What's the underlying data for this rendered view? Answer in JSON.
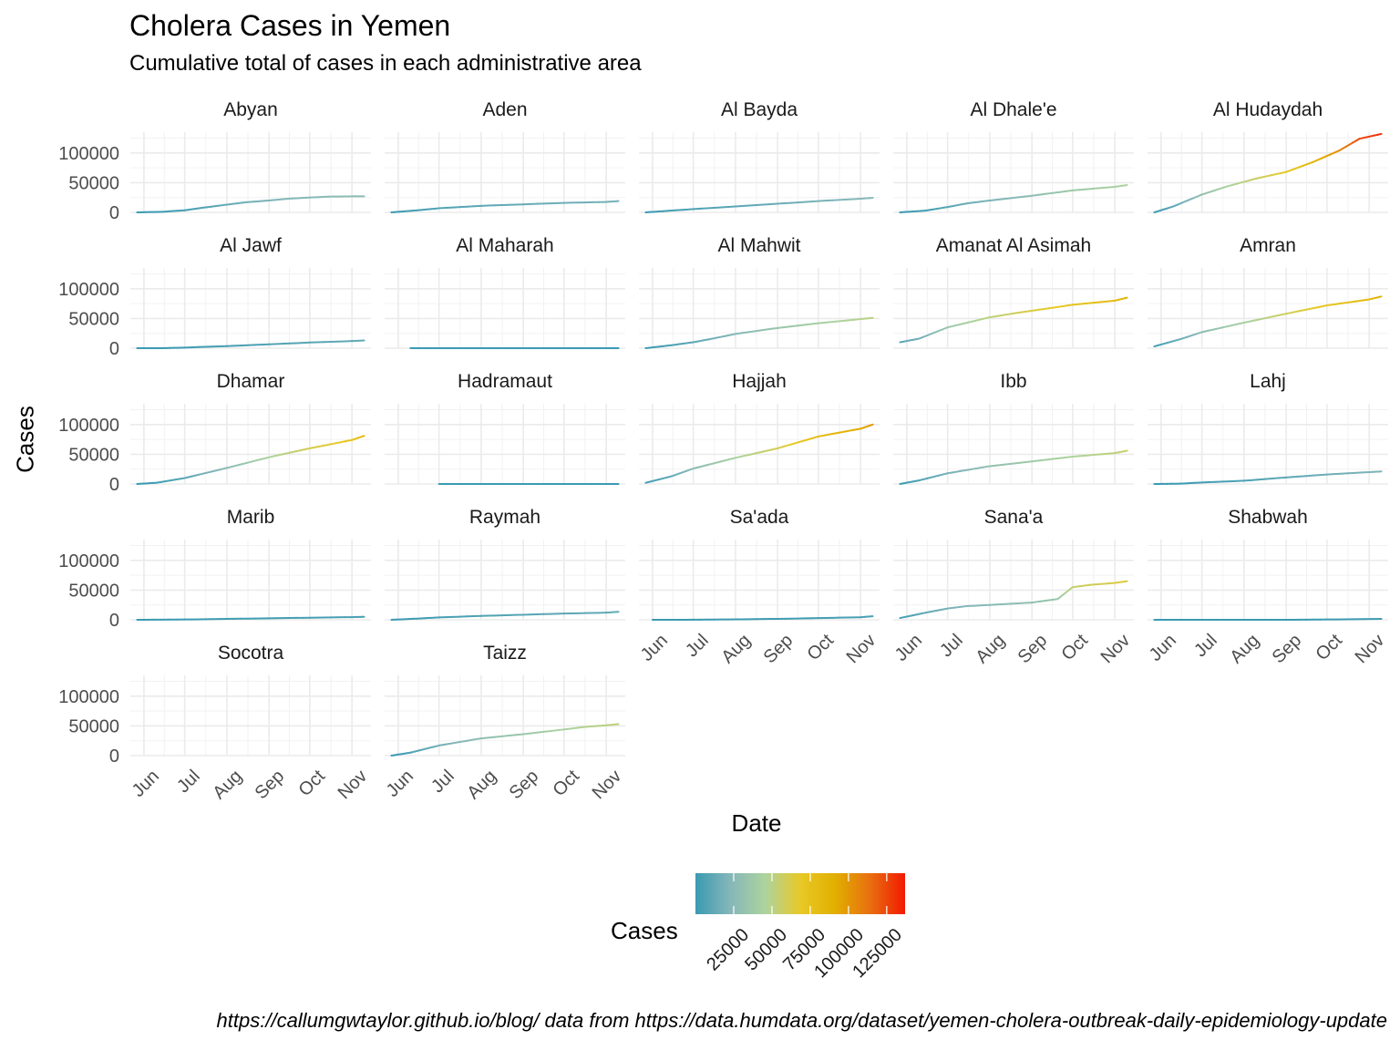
{
  "chart_data": {
    "type": "line",
    "title": "Cholera Cases in Yemen",
    "subtitle": "Cumulative total of cases in each administrative area",
    "xlabel": "Date",
    "ylabel": "Cases",
    "caption": "https://callumgwtaylor.github.io/blog/ data from https://data.humdata.org/dataset/yemen-cholera-outbreak-daily-epidemiology-update",
    "x_tick_labels": [
      "Jun",
      "Jul",
      "Aug",
      "Sep",
      "Oct",
      "Nov"
    ],
    "x_ticks": [
      "2017-06-01",
      "2017-07-01",
      "2017-08-01",
      "2017-09-01",
      "2017-10-01",
      "2017-11-01"
    ],
    "xlim": [
      "2017-05-22",
      "2017-11-15"
    ],
    "y_tick_labels": [
      "0",
      "50000",
      "100000"
    ],
    "y_ticks": [
      0,
      50000,
      100000
    ],
    "ylim": [
      0,
      135000
    ],
    "grid": true,
    "facet_layout": "5 columns, 5 rows",
    "color_scale": {
      "title": "Cases",
      "colors": [
        "#3a9ab2",
        "#85b7b9",
        "#add39e",
        "#e8c927",
        "#e1af00",
        "#e86f10",
        "#f21a00"
      ],
      "tick_labels": [
        "25000",
        "50000",
        "75000",
        "100000",
        "125000"
      ],
      "ticks": [
        25000,
        50000,
        75000,
        100000,
        125000
      ],
      "range": [
        0,
        137000
      ]
    },
    "panels": [
      {
        "name": "Abyan",
        "x": [
          "2017-05-27",
          "2017-06-15",
          "2017-07-01",
          "2017-07-15",
          "2017-08-01",
          "2017-08-15",
          "2017-09-01",
          "2017-09-15",
          "2017-10-01",
          "2017-10-15",
          "2017-11-01",
          "2017-11-10"
        ],
        "y": [
          0,
          1000,
          3500,
          8000,
          13000,
          17000,
          20000,
          23000,
          25000,
          26500,
          27000,
          27000
        ]
      },
      {
        "name": "Aden",
        "x": [
          "2017-05-27",
          "2017-06-15",
          "2017-07-01",
          "2017-08-01",
          "2017-09-01",
          "2017-10-01",
          "2017-11-01",
          "2017-11-10"
        ],
        "y": [
          0,
          3500,
          7000,
          11000,
          13500,
          16000,
          17500,
          19000
        ]
      },
      {
        "name": "Al Bayda",
        "x": [
          "2017-05-27",
          "2017-06-15",
          "2017-07-01",
          "2017-08-01",
          "2017-09-01",
          "2017-10-01",
          "2017-11-01",
          "2017-11-10"
        ],
        "y": [
          0,
          3000,
          5500,
          10000,
          14500,
          19000,
          23000,
          24500
        ]
      },
      {
        "name": "Al Dhale'e",
        "x": [
          "2017-05-27",
          "2017-06-15",
          "2017-07-01",
          "2017-07-15",
          "2017-08-01",
          "2017-09-01",
          "2017-10-01",
          "2017-11-01",
          "2017-11-10"
        ],
        "y": [
          0,
          3000,
          9000,
          15000,
          20000,
          28000,
          37000,
          43000,
          46000
        ]
      },
      {
        "name": "Al Hudaydah",
        "x": [
          "2017-05-27",
          "2017-06-10",
          "2017-07-01",
          "2017-07-20",
          "2017-08-10",
          "2017-09-01",
          "2017-09-20",
          "2017-10-10",
          "2017-10-25",
          "2017-11-10"
        ],
        "y": [
          0,
          10000,
          30000,
          44000,
          57000,
          68000,
          84000,
          104000,
          124000,
          132000
        ]
      },
      {
        "name": "Al Jawf",
        "x": [
          "2017-05-27",
          "2017-06-15",
          "2017-07-01",
          "2017-08-01",
          "2017-09-01",
          "2017-10-01",
          "2017-11-01",
          "2017-11-10"
        ],
        "y": [
          0,
          0,
          1000,
          3500,
          6500,
          9500,
          12000,
          13000
        ]
      },
      {
        "name": "Al Maharah",
        "x": [
          "2017-06-10",
          "2017-11-10"
        ],
        "y": [
          0,
          0
        ]
      },
      {
        "name": "Al Mahwit",
        "x": [
          "2017-05-27",
          "2017-06-15",
          "2017-07-01",
          "2017-07-15",
          "2017-08-01",
          "2017-09-01",
          "2017-10-01",
          "2017-11-01",
          "2017-11-10"
        ],
        "y": [
          0,
          5000,
          10000,
          16000,
          24000,
          34000,
          42000,
          49000,
          51000
        ]
      },
      {
        "name": "Amanat Al Asimah",
        "x": [
          "2017-05-27",
          "2017-06-10",
          "2017-07-01",
          "2017-08-01",
          "2017-08-20",
          "2017-09-10",
          "2017-10-01",
          "2017-11-01",
          "2017-11-10"
        ],
        "y": [
          10000,
          16000,
          35000,
          52000,
          59000,
          66000,
          73000,
          80000,
          85000
        ]
      },
      {
        "name": "Amran",
        "x": [
          "2017-05-27",
          "2017-06-15",
          "2017-07-01",
          "2017-08-01",
          "2017-09-01",
          "2017-10-01",
          "2017-11-01",
          "2017-11-10"
        ],
        "y": [
          3000,
          15000,
          27000,
          43000,
          58000,
          72000,
          82000,
          87000
        ]
      },
      {
        "name": "Dhamar",
        "x": [
          "2017-05-27",
          "2017-06-10",
          "2017-07-01",
          "2017-08-01",
          "2017-09-01",
          "2017-10-01",
          "2017-11-01",
          "2017-11-10"
        ],
        "y": [
          0,
          2000,
          10000,
          27000,
          45000,
          60000,
          74000,
          81000
        ]
      },
      {
        "name": "Hadramaut",
        "x": [
          "2017-07-01",
          "2017-11-10"
        ],
        "y": [
          0,
          0
        ]
      },
      {
        "name": "Hajjah",
        "x": [
          "2017-05-27",
          "2017-06-15",
          "2017-07-01",
          "2017-08-01",
          "2017-09-01",
          "2017-10-01",
          "2017-11-01",
          "2017-11-10"
        ],
        "y": [
          2000,
          13000,
          26000,
          44000,
          60000,
          80000,
          93000,
          100000
        ]
      },
      {
        "name": "Ibb",
        "x": [
          "2017-05-27",
          "2017-06-10",
          "2017-07-01",
          "2017-08-01",
          "2017-09-01",
          "2017-10-01",
          "2017-11-01",
          "2017-11-10"
        ],
        "y": [
          0,
          6000,
          18000,
          30000,
          38000,
          46000,
          52000,
          56000
        ]
      },
      {
        "name": "Lahj",
        "x": [
          "2017-05-27",
          "2017-06-15",
          "2017-07-01",
          "2017-08-01",
          "2017-09-01",
          "2017-10-01",
          "2017-11-01",
          "2017-11-10"
        ],
        "y": [
          0,
          500,
          2500,
          5500,
          11000,
          16000,
          20000,
          21000
        ]
      },
      {
        "name": "Marib",
        "x": [
          "2017-05-27",
          "2017-07-01",
          "2017-08-01",
          "2017-09-01",
          "2017-10-01",
          "2017-11-01",
          "2017-11-10"
        ],
        "y": [
          0,
          500,
          1500,
          2500,
          3500,
          4500,
          5000
        ]
      },
      {
        "name": "Raymah",
        "x": [
          "2017-05-27",
          "2017-06-15",
          "2017-07-01",
          "2017-08-01",
          "2017-09-01",
          "2017-10-01",
          "2017-11-01",
          "2017-11-10"
        ],
        "y": [
          0,
          2000,
          4000,
          6500,
          8500,
          10500,
          12000,
          13500
        ]
      },
      {
        "name": "Sa'ada",
        "x": [
          "2017-06-01",
          "2017-07-01",
          "2017-08-01",
          "2017-09-01",
          "2017-10-01",
          "2017-11-01",
          "2017-11-10"
        ],
        "y": [
          0,
          100,
          700,
          1600,
          2800,
          4300,
          6000
        ]
      },
      {
        "name": "Sana'a",
        "x": [
          "2017-05-27",
          "2017-06-15",
          "2017-07-01",
          "2017-07-15",
          "2017-08-01",
          "2017-09-01",
          "2017-09-20",
          "2017-10-01",
          "2017-10-15",
          "2017-11-01",
          "2017-11-10"
        ],
        "y": [
          3000,
          12000,
          19000,
          23000,
          25000,
          29000,
          35000,
          55000,
          59000,
          62000,
          65000
        ]
      },
      {
        "name": "Shabwah",
        "x": [
          "2017-05-27",
          "2017-07-01",
          "2017-09-01",
          "2017-10-01",
          "2017-11-10"
        ],
        "y": [
          0,
          0,
          0,
          500,
          1500
        ]
      },
      {
        "name": "Socotra",
        "x": [],
        "y": []
      },
      {
        "name": "Taizz",
        "x": [
          "2017-05-27",
          "2017-06-10",
          "2017-07-01",
          "2017-08-01",
          "2017-09-01",
          "2017-10-01",
          "2017-10-15",
          "2017-11-01",
          "2017-11-10"
        ],
        "y": [
          0,
          5000,
          17000,
          29000,
          36000,
          44000,
          48000,
          51000,
          53000
        ]
      }
    ]
  }
}
